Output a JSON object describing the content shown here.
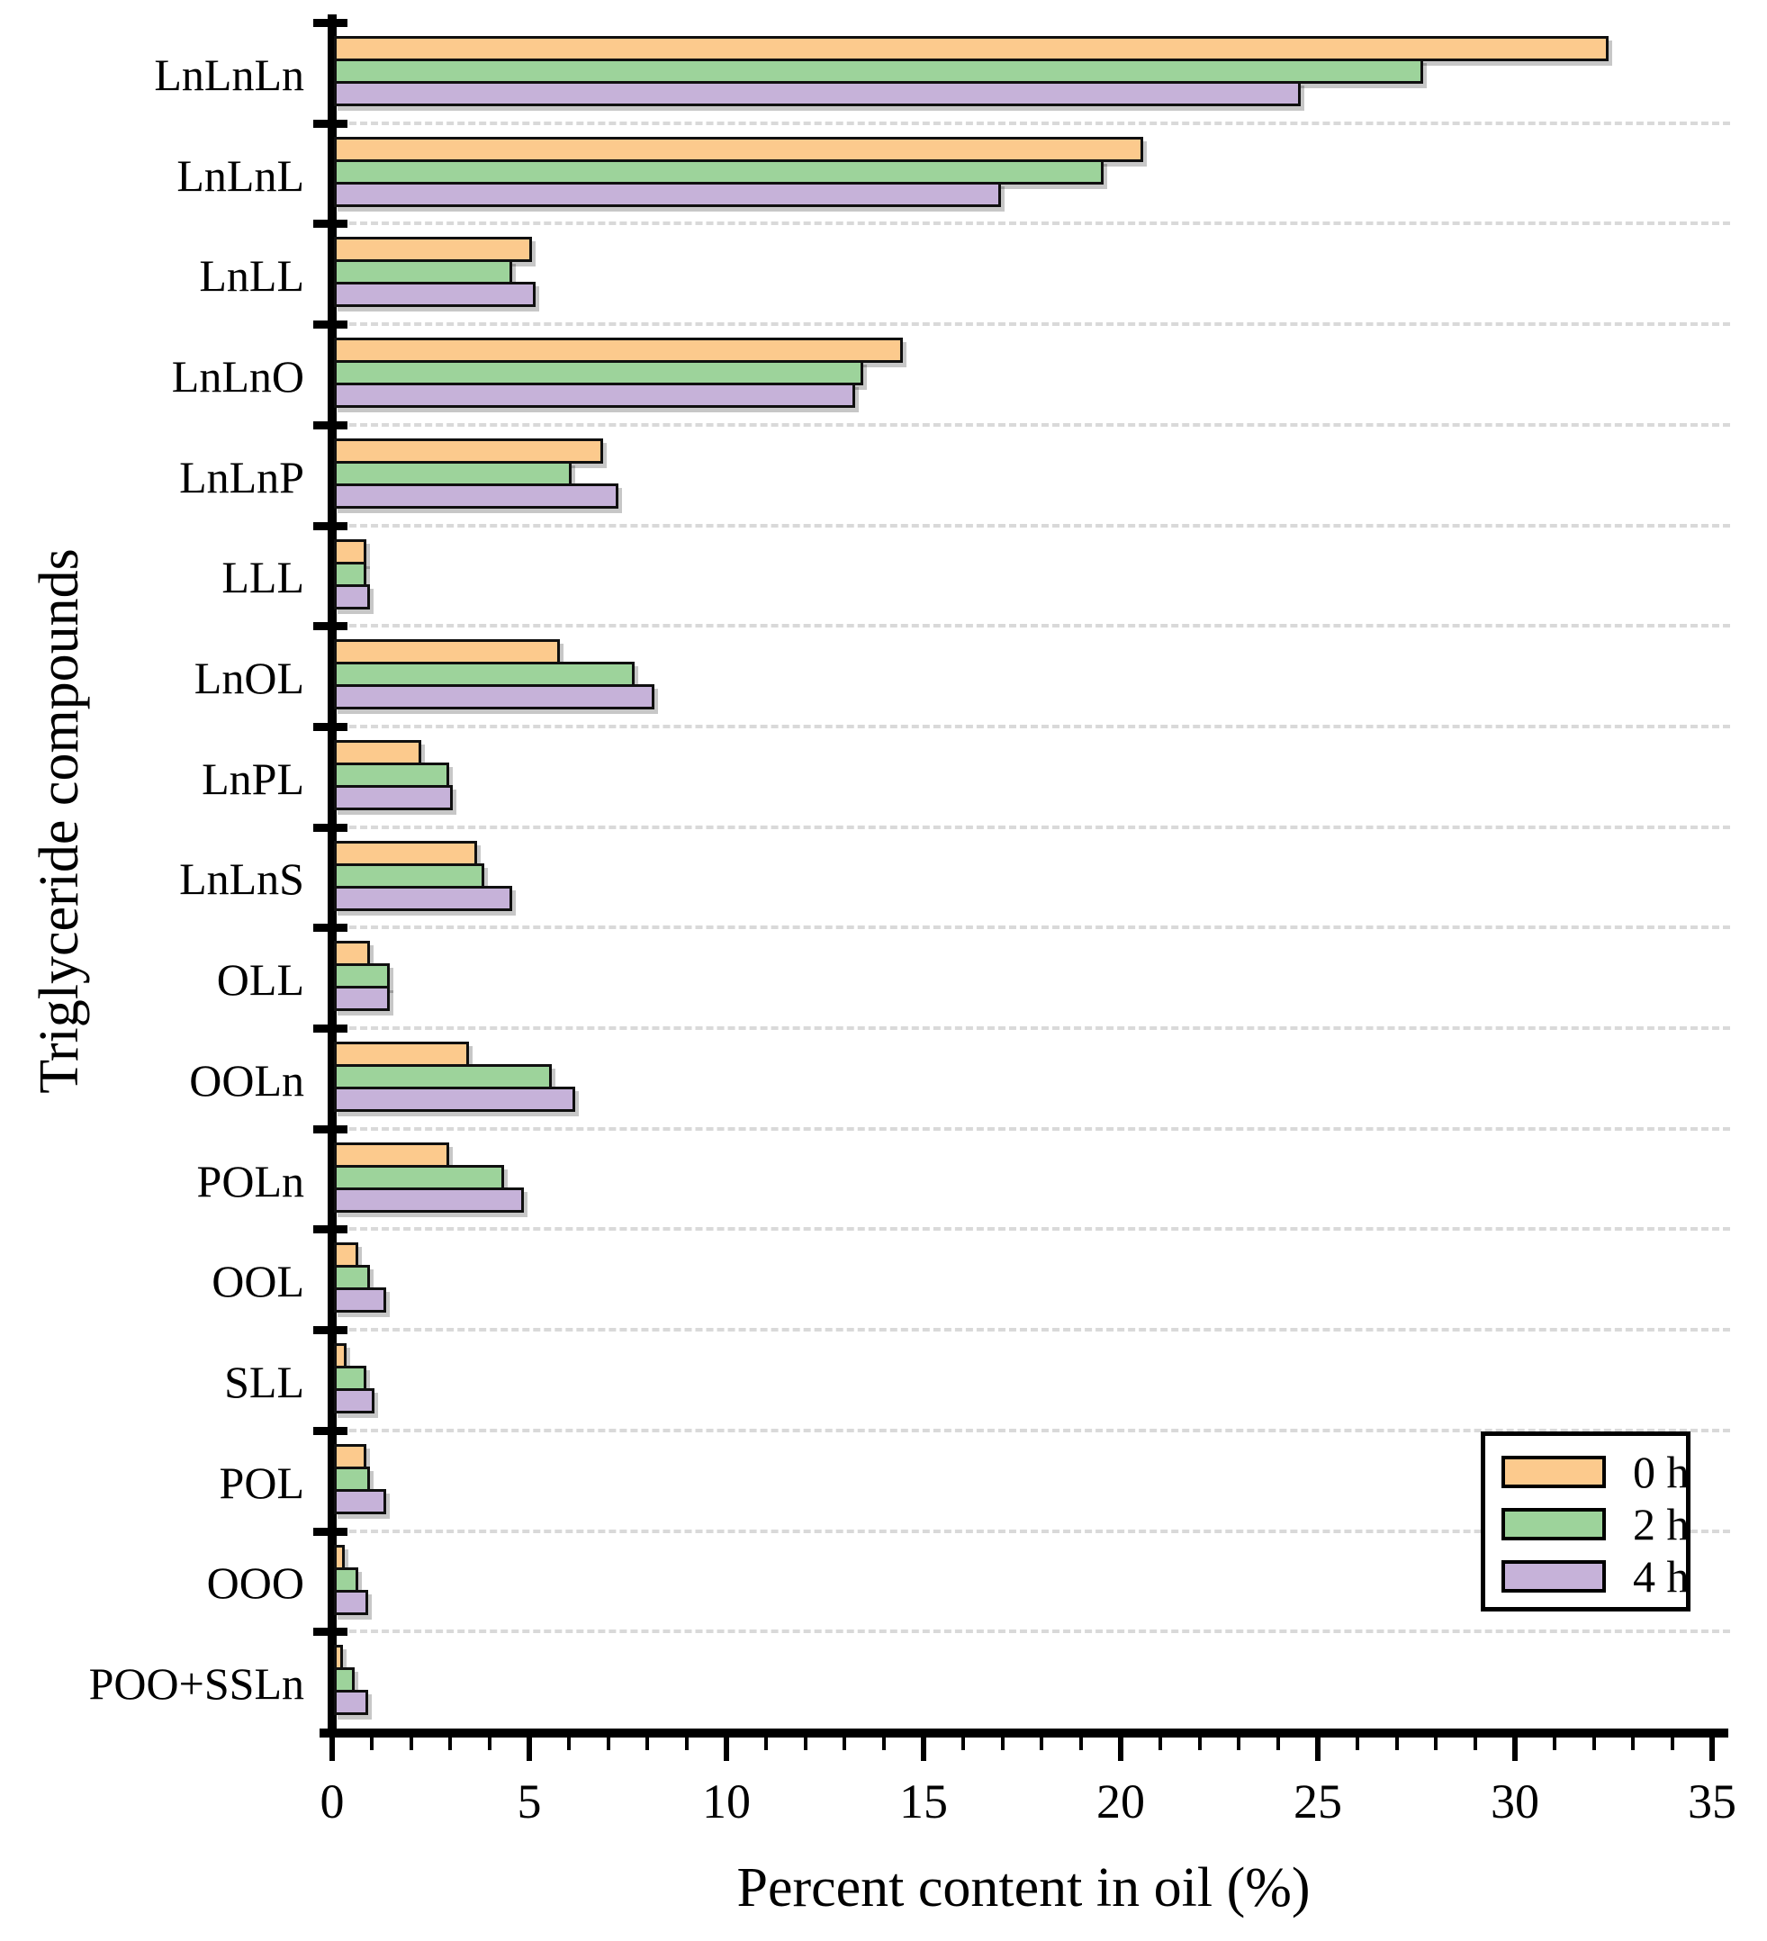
{
  "chart_data": {
    "type": "bar",
    "orientation": "horizontal",
    "title": "",
    "xlabel": "Percent content in oil (%)",
    "ylabel": "Triglyceride compounds",
    "xlim": [
      0,
      35
    ],
    "x_major_ticks": [
      0,
      5,
      10,
      15,
      20,
      25,
      30,
      35
    ],
    "x_minor_tick_step": 1,
    "grid": "dashed horizontal separators between category groups",
    "legend_position": "bottom-right inside plot",
    "categories": [
      "LnLnLn",
      "LnLnL",
      "LnLL",
      "LnLnO",
      "LnLnP",
      "LLL",
      "LnOL",
      "LnPL",
      "LnLnS",
      "OLL",
      "OOLn",
      "POLn",
      "OOL",
      "SLL",
      "POL",
      "OOO",
      "POO+SSLn"
    ],
    "series": [
      {
        "name": "0 h",
        "color": "#FCCA8D",
        "values": [
          32.3,
          20.5,
          5.0,
          14.4,
          6.8,
          0.8,
          5.7,
          2.2,
          3.6,
          0.9,
          3.4,
          2.9,
          0.6,
          0.3,
          0.8,
          0.25,
          0.2
        ]
      },
      {
        "name": "2 h",
        "color": "#9DD39B",
        "values": [
          27.6,
          19.5,
          4.5,
          13.4,
          6.0,
          0.8,
          7.6,
          2.9,
          3.8,
          1.4,
          5.5,
          4.3,
          0.9,
          0.8,
          0.9,
          0.6,
          0.5
        ]
      },
      {
        "name": "4 h",
        "color": "#C6B2D9",
        "values": [
          24.5,
          16.9,
          5.1,
          13.2,
          7.2,
          0.9,
          8.1,
          3.0,
          4.5,
          1.4,
          6.1,
          4.8,
          1.3,
          1.0,
          1.3,
          0.85,
          0.85
        ]
      }
    ]
  }
}
